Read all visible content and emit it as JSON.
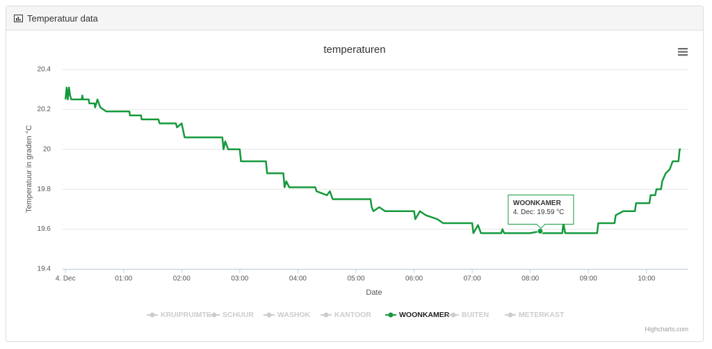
{
  "header": {
    "title": "Temperatuur data"
  },
  "chart_data": {
    "type": "line",
    "title": "temperaturen",
    "x_label": "Date",
    "y_label": "Temperatuur in graden °C",
    "xlim": [
      -0.05,
      10.72
    ],
    "ylim": [
      19.4,
      20.4
    ],
    "xticks": [
      {
        "value": 0,
        "label": "4. Dec"
      },
      {
        "value": 1,
        "label": "01:00"
      },
      {
        "value": 2,
        "label": "02:00"
      },
      {
        "value": 3,
        "label": "03:00"
      },
      {
        "value": 4,
        "label": "04:00"
      },
      {
        "value": 5,
        "label": "05:00"
      },
      {
        "value": 6,
        "label": "06:00"
      },
      {
        "value": 7,
        "label": "07:00"
      },
      {
        "value": 8,
        "label": "08:00"
      },
      {
        "value": 9,
        "label": "09:00"
      },
      {
        "value": 10,
        "label": "10:00"
      }
    ],
    "yticks": [
      19.4,
      19.6,
      19.8,
      20,
      20.2,
      20.4
    ],
    "grid": true,
    "x": [
      0,
      0.02,
      0.04,
      0.06,
      0.08,
      0.1,
      0.28,
      0.29,
      0.3,
      0.4,
      0.41,
      0.5,
      0.51,
      0.55,
      0.6,
      0.7,
      1.1,
      1.11,
      1.3,
      1.31,
      1.6,
      1.62,
      1.9,
      1.92,
      2.0,
      2.05,
      2.7,
      2.72,
      2.75,
      2.8,
      3.0,
      3.02,
      3.45,
      3.47,
      3.75,
      3.77,
      3.8,
      3.85,
      4.3,
      4.32,
      4.5,
      4.55,
      4.6,
      5.25,
      5.27,
      5.3,
      5.4,
      5.5,
      6.0,
      6.02,
      6.1,
      6.2,
      6.4,
      6.5,
      7.0,
      7.02,
      7.1,
      7.15,
      7.5,
      7.52,
      7.55,
      8.0,
      8.17,
      8.2,
      8.55,
      8.57,
      8.6,
      9.15,
      9.17,
      9.45,
      9.47,
      9.6,
      9.8,
      9.82,
      10.05,
      10.07,
      10.15,
      10.17,
      10.25,
      10.27,
      10.33,
      10.4,
      10.45,
      10.55,
      10.57,
      10.59
    ],
    "series": [
      {
        "name": "KRUIPRUIMTE",
        "visible": false
      },
      {
        "name": "SCHUUR",
        "visible": false
      },
      {
        "name": "WASHOK",
        "visible": false
      },
      {
        "name": "KANTOOR",
        "visible": false
      },
      {
        "name": "WOONKAMER",
        "visible": true,
        "color": "#14993c",
        "values": [
          20.25,
          20.31,
          20.25,
          20.31,
          20.27,
          20.25,
          20.25,
          20.27,
          20.25,
          20.25,
          20.23,
          20.23,
          20.21,
          20.25,
          20.21,
          20.19,
          20.19,
          20.17,
          20.17,
          20.15,
          20.15,
          20.13,
          20.13,
          20.11,
          20.13,
          20.06,
          20.06,
          20.0,
          20.04,
          20.0,
          20.0,
          19.94,
          19.94,
          19.88,
          19.88,
          19.81,
          19.84,
          19.81,
          19.81,
          19.79,
          19.77,
          19.79,
          19.75,
          19.75,
          19.71,
          19.69,
          19.71,
          19.69,
          19.69,
          19.65,
          19.69,
          19.67,
          19.65,
          19.63,
          19.63,
          19.58,
          19.62,
          19.58,
          19.58,
          19.6,
          19.58,
          19.58,
          19.59,
          19.58,
          19.58,
          19.63,
          19.58,
          19.58,
          19.63,
          19.63,
          19.67,
          19.69,
          19.69,
          19.73,
          19.73,
          19.77,
          19.77,
          19.8,
          19.8,
          19.84,
          19.88,
          19.9,
          19.94,
          19.94,
          20.0,
          20.0
        ]
      },
      {
        "name": "BUITEN",
        "visible": false
      },
      {
        "name": "METERKAST",
        "visible": false
      }
    ],
    "tooltip": {
      "series": 4,
      "x": 8.17,
      "value": 19.59,
      "label": "4. Dec: 19.59 °C"
    },
    "credits": "Highcharts.com"
  }
}
